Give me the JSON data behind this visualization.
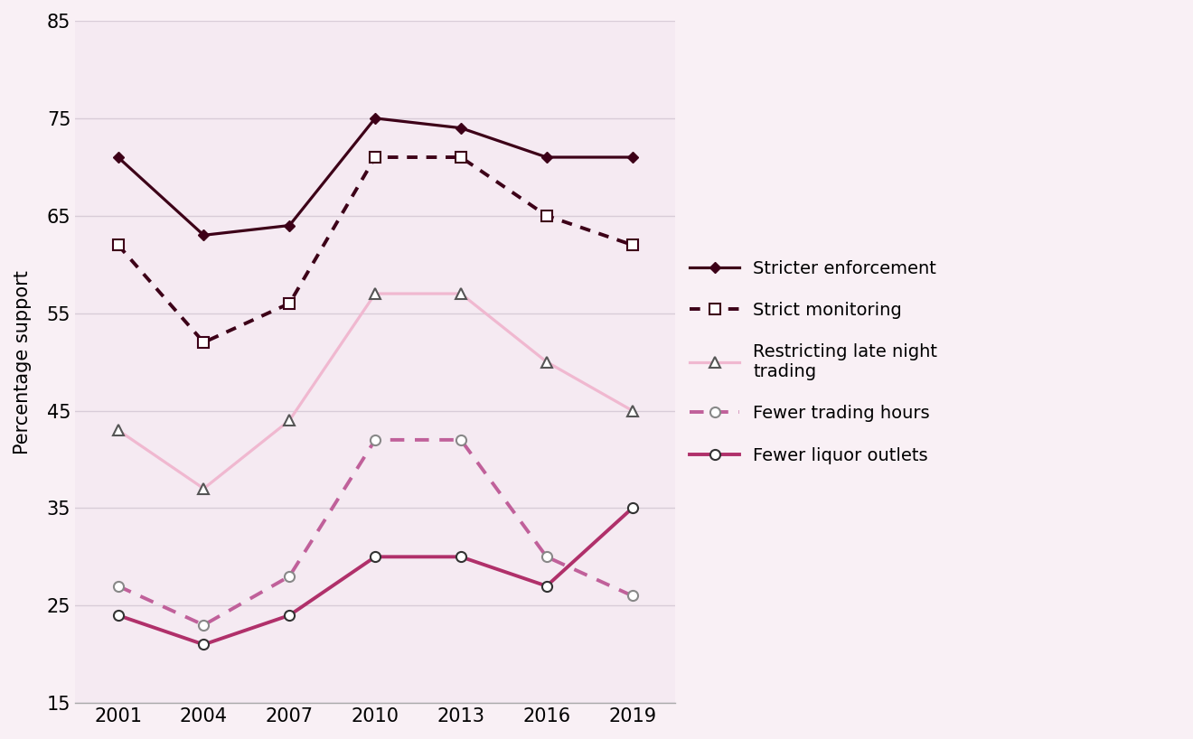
{
  "years": [
    2001,
    2004,
    2007,
    2010,
    2013,
    2016,
    2019
  ],
  "stricter_enforcement": [
    71,
    63,
    64,
    75,
    74,
    71,
    71
  ],
  "strict_monitoring": [
    62,
    52,
    56,
    71,
    71,
    65,
    62
  ],
  "restricting_late_night": [
    43,
    37,
    44,
    57,
    57,
    50,
    45
  ],
  "fewer_trading_hours": [
    27,
    23,
    28,
    42,
    42,
    30,
    26
  ],
  "fewer_liquor_outlets": [
    24,
    21,
    24,
    30,
    30,
    27,
    35
  ],
  "color_dark_maroon": "#3d0018",
  "color_pink": "#f0b8d0",
  "color_magenta_dotted": "#c0609a",
  "color_magenta_solid": "#b0306a",
  "ylabel": "Percentage support",
  "ylim": [
    15,
    85
  ],
  "yticks": [
    15,
    25,
    35,
    45,
    55,
    65,
    75,
    85
  ],
  "bg_color": "#f9f0f5",
  "plot_bg_color": "#f5eaf2",
  "grid_color": "#e0d0e0"
}
